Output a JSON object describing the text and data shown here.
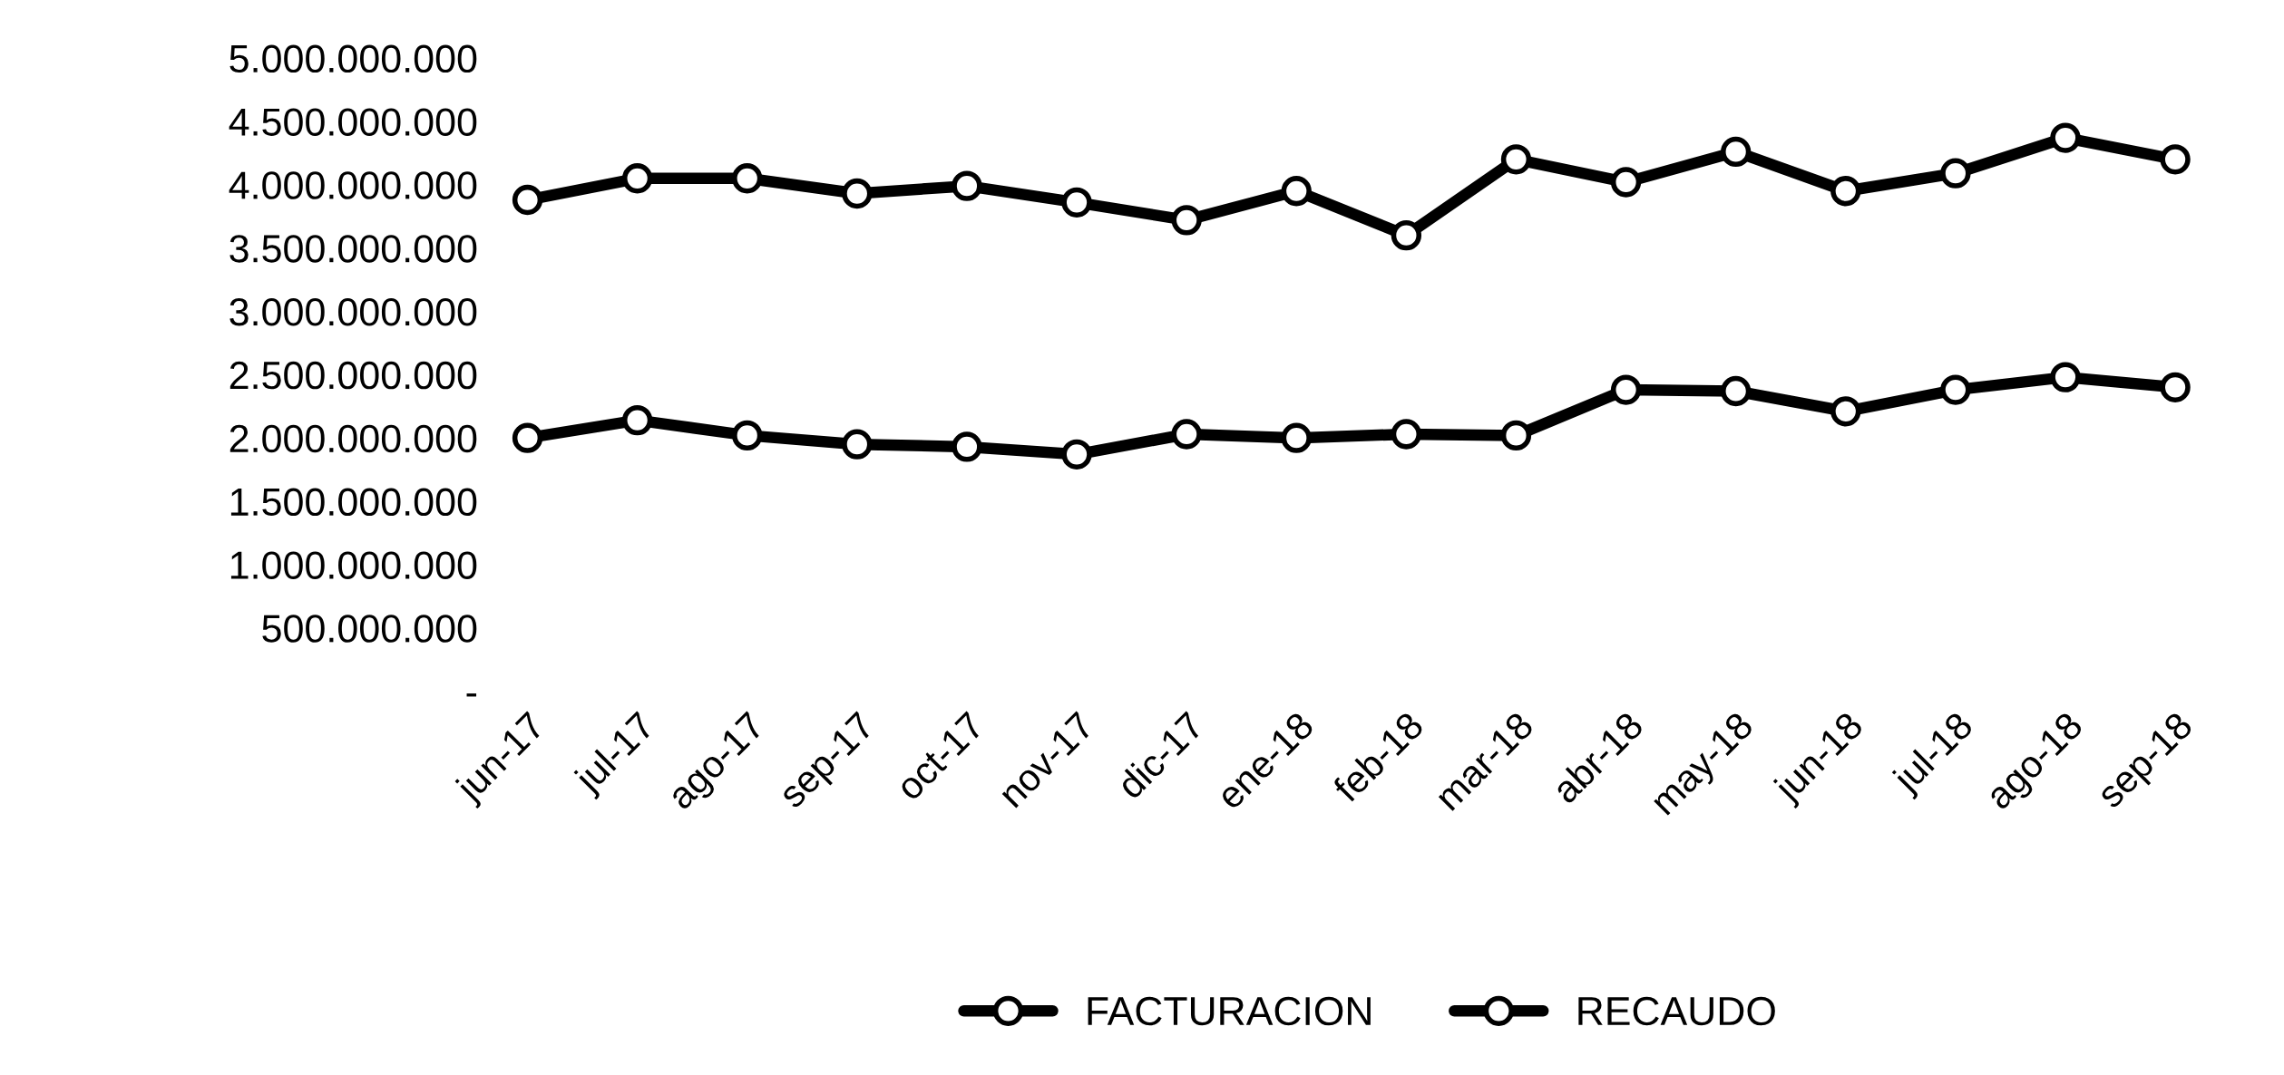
{
  "chart_data": {
    "type": "line",
    "categories": [
      "jun-17",
      "jul-17",
      "ago-17",
      "sep-17",
      "oct-17",
      "nov-17",
      "dic-17",
      "ene-18",
      "feb-18",
      "mar-18",
      "abr-18",
      "may-18",
      "jun-18",
      "jul-18",
      "ago-18",
      "sep-18"
    ],
    "series": [
      {
        "name": "FACTURACION",
        "color": "#000000",
        "values": [
          3880000000,
          4050000000,
          4050000000,
          3930000000,
          3990000000,
          3860000000,
          3720000000,
          3950000000,
          3600000000,
          4200000000,
          4020000000,
          4260000000,
          3950000000,
          4090000000,
          4370000000,
          4200000000
        ]
      },
      {
        "name": "RECAUDO",
        "color": "#000000",
        "values": [
          2000000000,
          2140000000,
          2020000000,
          1950000000,
          1930000000,
          1870000000,
          2030000000,
          2000000000,
          2030000000,
          2020000000,
          2380000000,
          2370000000,
          2210000000,
          2380000000,
          2480000000,
          2400000000
        ]
      }
    ],
    "ylim": [
      0,
      5000000000
    ],
    "yticks": [
      {
        "value": 0,
        "label": "-"
      },
      {
        "value": 500000000,
        "label": "500.000.000"
      },
      {
        "value": 1000000000,
        "label": "1.000.000.000"
      },
      {
        "value": 1500000000,
        "label": "1.500.000.000"
      },
      {
        "value": 2000000000,
        "label": "2.000.000.000"
      },
      {
        "value": 2500000000,
        "label": "2.500.000.000"
      },
      {
        "value": 3000000000,
        "label": "3.000.000.000"
      },
      {
        "value": 3500000000,
        "label": "3.500.000.000"
      },
      {
        "value": 4000000000,
        "label": "4.000.000.000"
      },
      {
        "value": 4500000000,
        "label": "4.500.000.000"
      },
      {
        "value": 5000000000,
        "label": "5.000.000.000"
      }
    ],
    "grid": false,
    "legend": "bottom",
    "marker": "circle",
    "line_style": "solid"
  }
}
